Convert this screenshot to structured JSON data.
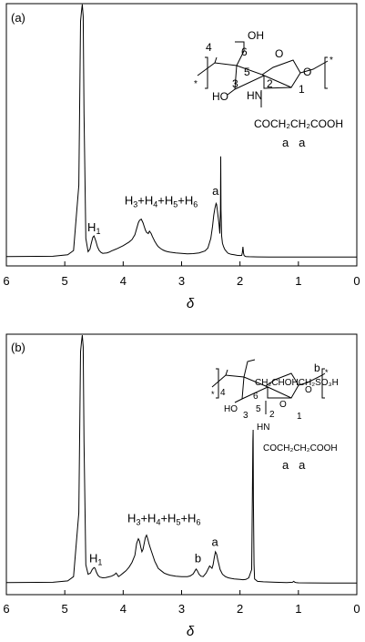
{
  "chart_data": [
    {
      "type": "line",
      "panel_label": "(a)",
      "xlabel": "δ",
      "xlim": [
        6,
        0
      ],
      "x_ticks": [
        "6",
        "5",
        "4",
        "3",
        "2",
        "1",
        "0"
      ],
      "series": [
        {
          "x": [
            6.0,
            5.2,
            4.95,
            4.85,
            4.76,
            4.73,
            4.715,
            4.7,
            4.685,
            4.67,
            4.64,
            4.6,
            4.57,
            4.55,
            4.52,
            4.5,
            4.47,
            4.44,
            4.41,
            4.38,
            4.35,
            4.32,
            4.28,
            4.24,
            4.2,
            4.1,
            4.0,
            3.9,
            3.85,
            3.8,
            3.77,
            3.74,
            3.72,
            3.69,
            3.66,
            3.64,
            3.62,
            3.6,
            3.57,
            3.55,
            3.52,
            3.5,
            3.48,
            3.46,
            3.44,
            3.42,
            3.4,
            3.36,
            3.32,
            3.28,
            3.24,
            3.2,
            3.1,
            3.0,
            2.9,
            2.8,
            2.7,
            2.6,
            2.55,
            2.5,
            2.47,
            2.45,
            2.43,
            2.41,
            2.4,
            2.38,
            2.36,
            2.345,
            2.335,
            2.33,
            2.325,
            2.315,
            2.3,
            2.28,
            2.26,
            2.24,
            2.22,
            2.2,
            2.15,
            2.1,
            2.05,
            2.0,
            1.97,
            1.96,
            1.95,
            1.94,
            1.93,
            1.92,
            1.9,
            1.85,
            1.7,
            1.5,
            1.2,
            1.0,
            0.8,
            0.5,
            0.2,
            0.0
          ],
          "y": [
            0.5,
            0.6,
            1.2,
            3.0,
            30,
            98,
            102,
            105,
            100,
            60,
            8,
            2.5,
            3.5,
            5.5,
            8.5,
            9.0,
            7.0,
            4.5,
            3.0,
            2.2,
            1.8,
            1.9,
            2.0,
            2.3,
            2.8,
            3.8,
            5.0,
            6.5,
            7.5,
            9.5,
            12.0,
            14.5,
            15.5,
            16.0,
            14.5,
            13.0,
            11.5,
            10.5,
            10.0,
            11.0,
            10.0,
            8.8,
            7.8,
            6.8,
            6.0,
            5.2,
            4.6,
            3.8,
            3.2,
            2.8,
            2.5,
            2.3,
            2.0,
            1.8,
            1.6,
            1.7,
            2.0,
            2.8,
            4.0,
            8.0,
            13.0,
            17.5,
            20.5,
            22.5,
            22.0,
            18.0,
            14.0,
            10.0,
            20.0,
            42.0,
            20.0,
            9.0,
            6.0,
            4.5,
            3.4,
            2.8,
            2.2,
            1.8,
            1.4,
            1.2,
            1.0,
            0.9,
            1.0,
            2.0,
            4.5,
            2.0,
            0.9,
            0.7,
            0.5,
            0.4,
            0.35,
            0.3,
            0.3,
            0.3,
            0.3,
            0.3,
            0.3,
            0.3
          ]
        }
      ],
      "annotations": [
        {
          "x": 4.5,
          "y": 11,
          "base": "H",
          "sub": "1"
        },
        {
          "x": 3.35,
          "y": 22,
          "base": "H",
          "sub": "3",
          "parts": [
            [
              "H",
              "3"
            ],
            [
              "H",
              "4"
            ],
            [
              "H",
              "5"
            ],
            [
              "H",
              "6"
            ]
          ]
        },
        {
          "x": 2.42,
          "y": 26,
          "base": "a",
          "sub": ""
        }
      ],
      "structure": {
        "ring_labels": [
          "4",
          "6",
          "5",
          "3",
          "2",
          "1"
        ],
        "oh_top": "OH",
        "ring_o": "O",
        "linker_o": "O",
        "ho_left": "HO",
        "hn": "HN",
        "side_chain": "COCH₂CH₂COOH",
        "side_marks": "a   a",
        "star_left": "*",
        "star_right": "*"
      }
    },
    {
      "type": "line",
      "panel_label": "(b)",
      "xlabel": "δ",
      "xlim": [
        6,
        0
      ],
      "x_ticks": [
        "6",
        "5",
        "4",
        "3",
        "2",
        "1",
        "0"
      ],
      "series": [
        {
          "x": [
            6.0,
            5.2,
            4.95,
            4.85,
            4.76,
            4.73,
            4.715,
            4.7,
            4.685,
            4.67,
            4.64,
            4.6,
            4.56,
            4.53,
            4.5,
            4.48,
            4.46,
            4.43,
            4.4,
            4.35,
            4.3,
            4.25,
            4.2,
            4.15,
            4.12,
            4.1,
            4.08,
            4.05,
            4.0,
            3.95,
            3.9,
            3.85,
            3.8,
            3.77,
            3.74,
            3.72,
            3.7,
            3.68,
            3.66,
            3.64,
            3.62,
            3.6,
            3.58,
            3.56,
            3.54,
            3.52,
            3.5,
            3.48,
            3.46,
            3.44,
            3.42,
            3.4,
            3.35,
            3.3,
            3.25,
            3.2,
            3.1,
            3.0,
            2.9,
            2.85,
            2.8,
            2.77,
            2.75,
            2.73,
            2.7,
            2.67,
            2.63,
            2.58,
            2.55,
            2.52,
            2.5,
            2.48,
            2.46,
            2.44,
            2.42,
            2.4,
            2.38,
            2.36,
            2.34,
            2.3,
            2.25,
            2.2,
            2.1,
            2.0,
            1.95,
            1.9,
            1.85,
            1.8,
            1.79,
            1.78,
            1.775,
            1.77,
            1.76,
            1.75,
            1.7,
            1.6,
            1.4,
            1.2,
            1.1,
            1.08,
            1.06,
            1.04,
            1.0,
            0.8,
            0.5,
            0.2,
            0.0
          ],
          "y": [
            0.5,
            0.6,
            1.2,
            3.0,
            30,
            98,
            102,
            105,
            100,
            60,
            8,
            4.0,
            4.5,
            6.0,
            6.8,
            6.5,
            5.0,
            3.5,
            2.8,
            2.5,
            2.6,
            2.9,
            3.2,
            3.8,
            4.5,
            3.8,
            3.0,
            3.5,
            4.5,
            5.5,
            7.0,
            9.0,
            12.0,
            17.0,
            19.0,
            18.0,
            15.5,
            13.5,
            14.5,
            17.0,
            19.5,
            20.5,
            19.0,
            17.0,
            15.5,
            14.0,
            12.5,
            11.0,
            9.5,
            8.5,
            7.5,
            6.5,
            5.5,
            4.5,
            4.0,
            3.6,
            3.2,
            3.0,
            3.0,
            3.3,
            4.2,
            5.5,
            6.2,
            5.5,
            4.0,
            3.2,
            3.0,
            4.5,
            6.0,
            7.5,
            7.0,
            6.5,
            8.0,
            11.0,
            13.5,
            12.5,
            10.0,
            8.0,
            6.0,
            4.0,
            3.0,
            2.5,
            2.0,
            1.8,
            1.7,
            1.8,
            2.5,
            6.0,
            30.0,
            60.0,
            65.0,
            35.0,
            8.0,
            2.0,
            1.0,
            0.8,
            0.6,
            0.5,
            0.6,
            1.0,
            0.6,
            0.5,
            0.4,
            0.35,
            0.3,
            0.3,
            0.3
          ]
        }
      ],
      "annotations": [
        {
          "x": 4.47,
          "y": 9,
          "base": "H",
          "sub": "1"
        },
        {
          "x": 3.3,
          "y": 26,
          "base": "H",
          "sub": "3",
          "parts": [
            [
              "H",
              "3"
            ],
            [
              "H",
              "4"
            ],
            [
              "H",
              "5"
            ],
            [
              "H",
              "6"
            ]
          ]
        },
        {
          "x": 2.72,
          "y": 9,
          "base": "b",
          "sub": ""
        },
        {
          "x": 2.43,
          "y": 16,
          "base": "a",
          "sub": ""
        }
      ],
      "structure": {
        "top_label": "b",
        "ch_chain": "CH₂CHOHCH₂SO₃H",
        "ring_labels": [
          "4",
          "6",
          "5",
          "3",
          "2",
          "1"
        ],
        "ring_o": "O",
        "linker_o": "O",
        "ho_left": "HO",
        "hn": "HN",
        "side_chain": "COCH₂CH₂COOH",
        "side_marks": "a   a",
        "star_left": "*",
        "star_right": "*"
      }
    }
  ]
}
